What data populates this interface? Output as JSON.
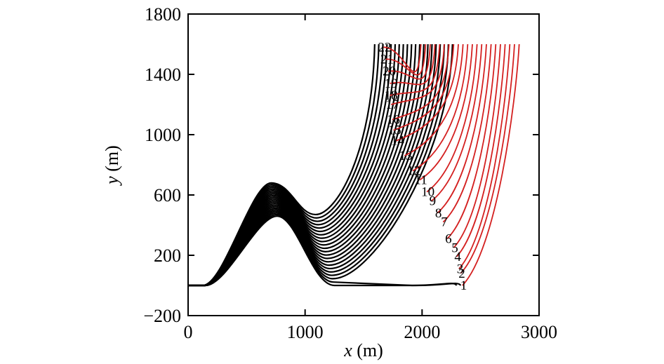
{
  "chart_data": {
    "type": "line",
    "xlabel": {
      "var": "x",
      "unit": " (m)"
    },
    "ylabel": {
      "var": "y",
      "unit": " (m)"
    },
    "xlim": [
      0,
      3000
    ],
    "ylim": [
      -200,
      1800
    ],
    "xticks": [
      0,
      1000,
      2000,
      3000
    ],
    "xtick_labels": [
      "0",
      "1000",
      "2000",
      "3000"
    ],
    "yticks": [
      -200,
      200,
      600,
      1000,
      1400,
      1800
    ],
    "ytick_labels": [
      "−200",
      "200",
      "600",
      "1000",
      "1400",
      "1800"
    ],
    "grid": false,
    "legend": "none",
    "colors": {
      "black_curve": "#000000",
      "red_curve": "#d42020",
      "axis": "#000000"
    },
    "black_series_count": 22,
    "series": [
      {
        "label": "1",
        "black_end_x": 2330,
        "label_x": 2355,
        "label_y": 0,
        "red_end_x": 2830,
        "top_y": 1600
      },
      {
        "label": "2",
        "black_end_x": 2295,
        "label_x": 2340,
        "label_y": 80,
        "red_end_x": 2790,
        "top_y": 1600
      },
      {
        "label": "3",
        "black_end_x": 2260,
        "label_x": 2325,
        "label_y": 110,
        "red_end_x": 2750,
        "top_y": 1600
      },
      {
        "label": "4",
        "black_end_x": 2225,
        "label_x": 2305,
        "label_y": 190,
        "red_end_x": 2710,
        "top_y": 1600
      },
      {
        "label": "5",
        "black_end_x": 2190,
        "label_x": 2280,
        "label_y": 250,
        "red_end_x": 2670,
        "top_y": 1600
      },
      {
        "label": "6",
        "black_end_x": 2155,
        "label_x": 2225,
        "label_y": 310,
        "red_end_x": 2630,
        "top_y": 1600
      },
      {
        "label": "7",
        "black_end_x": 2120,
        "label_x": 2190,
        "label_y": 420,
        "red_end_x": 2590,
        "top_y": 1600
      },
      {
        "label": "8",
        "black_end_x": 2085,
        "label_x": 2140,
        "label_y": 480,
        "red_end_x": 2550,
        "top_y": 1600
      },
      {
        "label": "9",
        "black_end_x": 2050,
        "label_x": 2090,
        "label_y": 560,
        "red_end_x": 2510,
        "top_y": 1600
      },
      {
        "label": "10",
        "black_end_x": 2015,
        "label_x": 2050,
        "label_y": 620,
        "red_end_x": 2470,
        "top_y": 1600
      },
      {
        "label": "11",
        "black_end_x": 1980,
        "label_x": 1990,
        "label_y": 700,
        "red_end_x": 2430,
        "top_y": 1600
      },
      {
        "label": "12",
        "black_end_x": 1945,
        "label_x": 1930,
        "label_y": 760,
        "red_end_x": 2390,
        "top_y": 1600
      },
      {
        "label": "13",
        "black_end_x": 1910,
        "label_x": 1860,
        "label_y": 860,
        "red_end_x": 2350,
        "top_y": 1600
      },
      {
        "label": "14",
        "black_end_x": 1875,
        "label_x": 1790,
        "label_y": 960,
        "red_end_x": 2310,
        "top_y": 1600
      },
      {
        "label": "15",
        "black_end_x": 1840,
        "label_x": 1765,
        "label_y": 1030,
        "red_end_x": 2270,
        "top_y": 1600
      },
      {
        "label": "16",
        "black_end_x": 1805,
        "label_x": 1755,
        "label_y": 1100,
        "red_end_x": 2230,
        "top_y": 1600
      },
      {
        "label": "17",
        "black_end_x": 1770,
        "label_x": 1745,
        "label_y": 1200,
        "red_end_x": 2190,
        "top_y": 1600
      },
      {
        "label": "18",
        "black_end_x": 1735,
        "label_x": 1735,
        "label_y": 1260,
        "red_end_x": 2150,
        "top_y": 1600
      },
      {
        "label": "19",
        "black_end_x": 1700,
        "label_x": 1735,
        "label_y": 1340,
        "red_end_x": 2110,
        "top_y": 1600
      },
      {
        "label": "20",
        "black_end_x": 1665,
        "label_x": 1720,
        "label_y": 1420,
        "red_end_x": 2070,
        "top_y": 1600
      },
      {
        "label": "21",
        "black_end_x": 1630,
        "label_x": 1700,
        "label_y": 1500,
        "red_end_x": 2030,
        "top_y": 1600
      },
      {
        "label": "22",
        "black_end_x": 1595,
        "label_x": 1680,
        "label_y": 1580,
        "red_end_x": 1990,
        "top_y": 1600
      }
    ]
  }
}
